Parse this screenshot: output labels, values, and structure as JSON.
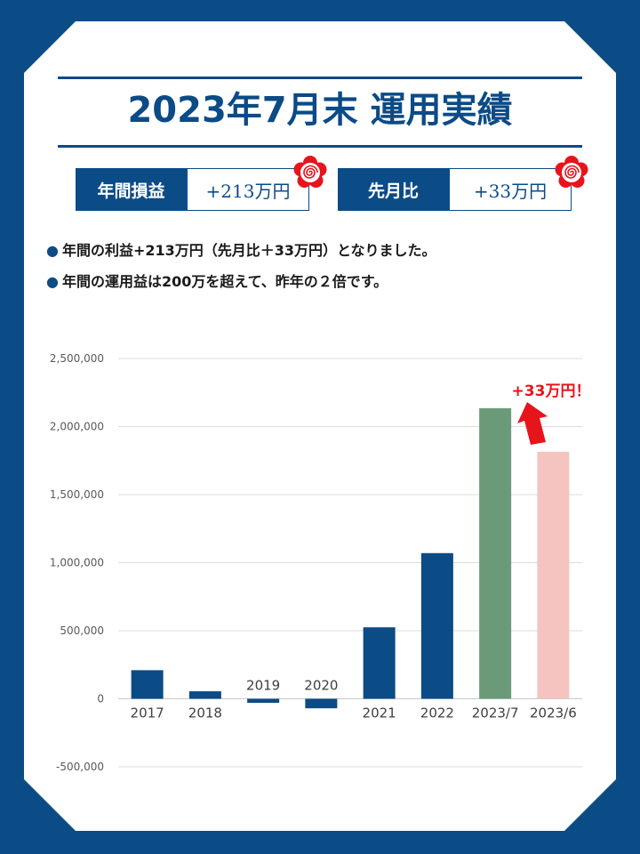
{
  "title": "2023年7月末 運用実績",
  "stats": [
    {
      "label": "年間損益",
      "value": "+213万円"
    },
    {
      "label": "先月比",
      "value": "+33万円"
    }
  ],
  "bullets": [
    "年間の利益+213万円（先月比＋33万円）となりました。",
    "年間の運用益は200万を超えて、昨年の２倍です。"
  ],
  "bullet_marker": "●",
  "annotation": "+33万円！",
  "colors": {
    "brand": "#0b4b86",
    "bar_current": "#6a9a78",
    "bar_previous": "#f5c4c0",
    "annotation": "#e8141c"
  },
  "chart_data": {
    "type": "bar",
    "categories": [
      "2017",
      "2018",
      "2019",
      "2020",
      "2021",
      "2022",
      "2023/7",
      "2023/6"
    ],
    "values": [
      210000,
      55000,
      -30000,
      -70000,
      525000,
      1070000,
      2135000,
      1815000
    ],
    "bar_colors": [
      "#0b4b86",
      "#0b4b86",
      "#0b4b86",
      "#0b4b86",
      "#0b4b86",
      "#0b4b86",
      "#6a9a78",
      "#f5c4c0"
    ],
    "y_ticks": [
      "2,500,000",
      "2,000,000",
      "1,500,000",
      "1,000,000",
      "500,000",
      "0",
      "-500,000"
    ],
    "y_tick_values": [
      2500000,
      2000000,
      1500000,
      1000000,
      500000,
      0,
      -500000
    ],
    "ylim": [
      -500000,
      2500000
    ],
    "grid": true,
    "title": "",
    "xlabel": "",
    "ylabel": ""
  }
}
